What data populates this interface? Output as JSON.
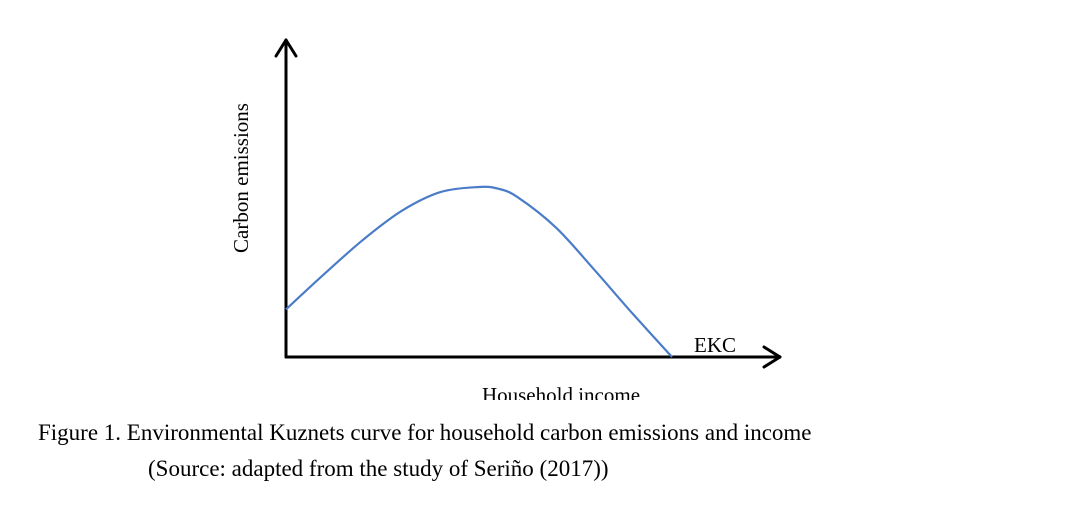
{
  "chart_data": {
    "type": "line",
    "title": "",
    "xlabel": "Household income",
    "ylabel": "Carbon emissions",
    "x_ticks": [],
    "y_ticks": [],
    "grid": false,
    "axis_arrows": true,
    "series": [
      {
        "name": "EKC",
        "color": "#4a7cc7",
        "label_placement": "end-right",
        "x": [
          0,
          0.1,
          0.2,
          0.3,
          0.4,
          0.5,
          0.55,
          0.6,
          0.7,
          0.8,
          0.9,
          1.0
        ],
        "y": [
          0.09,
          0.3,
          0.5,
          0.67,
          0.78,
          0.81,
          0.8,
          0.75,
          0.57,
          0.32,
          0.06,
          -0.19
        ]
      }
    ]
  },
  "caption": {
    "line1": "Figure 1. Environmental Kuznets curve for household carbon emissions and income",
    "line2": "(Source: adapted from the study of Seriño (2017))"
  }
}
